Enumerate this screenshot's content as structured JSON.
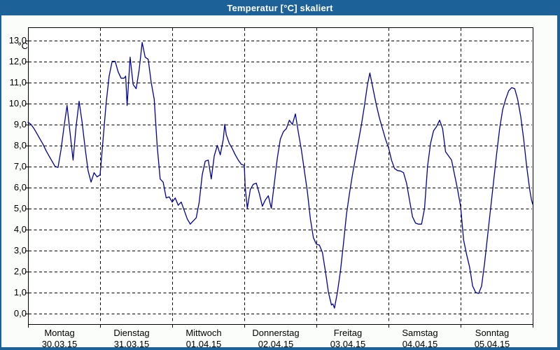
{
  "window": {
    "title": "Temperatur [°C] skaliert"
  },
  "colors": {
    "titlebar": "#1c6298",
    "frame": "#1c6298",
    "chart_background": "#fbfdfa",
    "plot_background": "#ffffff",
    "grid": "#000000",
    "text": "#000000",
    "line": "#0000a0"
  },
  "chart_data": {
    "type": "line",
    "title": "Temperatur [°C] skaliert",
    "ylabel": "°C",
    "xlabel": "",
    "ylim": [
      0,
      13
    ],
    "grid": "dashed",
    "legend_position": "none",
    "y_axis": {
      "unit_label": "°C",
      "min": 0,
      "max": 13,
      "tick_step": 1,
      "tick_labels": [
        "13,0",
        "12,0",
        "11,0",
        "10,0",
        "9,0",
        "8,0",
        "7,0",
        "6,0",
        "5,0",
        "4,0",
        "3,0",
        "2,0",
        "1,0",
        "0,0"
      ]
    },
    "x_axis": {
      "hours_per_day": 24,
      "days": [
        {
          "name": "Montag",
          "date": "30.03.15"
        },
        {
          "name": "Dienstag",
          "date": "31.03.15"
        },
        {
          "name": "Mittwoch",
          "date": "01.04.15"
        },
        {
          "name": "Donnerstag",
          "date": "02.04.15"
        },
        {
          "name": "Freitag",
          "date": "03.04.15"
        },
        {
          "name": "Samstag",
          "date": "04.04.15"
        },
        {
          "name": "Sonntag",
          "date": "05.04.15"
        }
      ]
    },
    "series": [
      {
        "name": "Temperatur",
        "color": "#0000a0",
        "points": [
          [
            0,
            9.1
          ],
          [
            1,
            9.0
          ],
          [
            2,
            8.8
          ],
          [
            3,
            8.55
          ],
          [
            4,
            8.3
          ],
          [
            5,
            8.05
          ],
          [
            6,
            7.75
          ],
          [
            7,
            7.5
          ],
          [
            8,
            7.25
          ],
          [
            9,
            7.0
          ],
          [
            10,
            6.95
          ],
          [
            11,
            7.8
          ],
          [
            12,
            8.9
          ],
          [
            13,
            9.9
          ],
          [
            14,
            8.6
          ],
          [
            15,
            7.3
          ],
          [
            16,
            8.9
          ],
          [
            17,
            10.1
          ],
          [
            18,
            9.1
          ],
          [
            19,
            7.9
          ],
          [
            20,
            6.8
          ],
          [
            21,
            6.25
          ],
          [
            22,
            6.7
          ],
          [
            23,
            6.5
          ],
          [
            24,
            6.6
          ],
          [
            25,
            8.3
          ],
          [
            26,
            10.0
          ],
          [
            27,
            11.3
          ],
          [
            28,
            12.0
          ],
          [
            29,
            12.0
          ],
          [
            30,
            11.5
          ],
          [
            31,
            11.2
          ],
          [
            32,
            11.2
          ],
          [
            32.5,
            11.3
          ],
          [
            33,
            9.9
          ],
          [
            34,
            12.2
          ],
          [
            35,
            10.9
          ],
          [
            36,
            10.7
          ],
          [
            37,
            11.6
          ],
          [
            38,
            12.9
          ],
          [
            39,
            12.2
          ],
          [
            40,
            12.1
          ],
          [
            41,
            11.0
          ],
          [
            42,
            10.2
          ],
          [
            43,
            8.0
          ],
          [
            44,
            6.4
          ],
          [
            45,
            6.25
          ],
          [
            46,
            5.5
          ],
          [
            47,
            5.55
          ],
          [
            48,
            5.3
          ],
          [
            49,
            5.5
          ],
          [
            50,
            5.15
          ],
          [
            51,
            5.3
          ],
          [
            52,
            4.9
          ],
          [
            53,
            4.5
          ],
          [
            54,
            4.25
          ],
          [
            55,
            4.4
          ],
          [
            56,
            4.55
          ],
          [
            57,
            5.3
          ],
          [
            58,
            6.6
          ],
          [
            59,
            7.25
          ],
          [
            60,
            7.3
          ],
          [
            61,
            6.4
          ],
          [
            62,
            7.5
          ],
          [
            63,
            8.0
          ],
          [
            64,
            7.55
          ],
          [
            65,
            8.3
          ],
          [
            65.5,
            9.0
          ],
          [
            66,
            8.5
          ],
          [
            67,
            8.1
          ],
          [
            68,
            7.85
          ],
          [
            69,
            7.55
          ],
          [
            70,
            7.3
          ],
          [
            71,
            7.1
          ],
          [
            72,
            7.05
          ],
          [
            72.3,
            6.0
          ],
          [
            73,
            5.0
          ],
          [
            74,
            5.9
          ],
          [
            75,
            6.15
          ],
          [
            76,
            6.2
          ],
          [
            77,
            5.7
          ],
          [
            78,
            5.1
          ],
          [
            79,
            5.4
          ],
          [
            80,
            5.6
          ],
          [
            81,
            5.0
          ],
          [
            82,
            6.2
          ],
          [
            83,
            7.4
          ],
          [
            84,
            8.3
          ],
          [
            85,
            8.65
          ],
          [
            86,
            8.8
          ],
          [
            87,
            9.2
          ],
          [
            88,
            9.0
          ],
          [
            89,
            9.5
          ],
          [
            90,
            8.6
          ],
          [
            91,
            7.8
          ],
          [
            92,
            6.8
          ],
          [
            93,
            5.8
          ],
          [
            94,
            4.5
          ],
          [
            95,
            3.6
          ],
          [
            96,
            3.3
          ],
          [
            97,
            3.25
          ],
          [
            98,
            2.9
          ],
          [
            99,
            2.0
          ],
          [
            100,
            1.0
          ],
          [
            101,
            0.4
          ],
          [
            101.5,
            0.45
          ],
          [
            102,
            0.25
          ],
          [
            103,
            1.0
          ],
          [
            104,
            2.0
          ],
          [
            105,
            3.3
          ],
          [
            106,
            4.7
          ],
          [
            107,
            5.7
          ],
          [
            108,
            6.6
          ],
          [
            109,
            7.4
          ],
          [
            110,
            8.2
          ],
          [
            111,
            9.0
          ],
          [
            112,
            9.9
          ],
          [
            113,
            10.9
          ],
          [
            113.8,
            11.45
          ],
          [
            115,
            10.6
          ],
          [
            116,
            9.9
          ],
          [
            117,
            9.3
          ],
          [
            118,
            8.8
          ],
          [
            119,
            8.3
          ],
          [
            120,
            7.9
          ],
          [
            121,
            7.3
          ],
          [
            122,
            6.9
          ],
          [
            123,
            6.8
          ],
          [
            124,
            6.78
          ],
          [
            125,
            6.7
          ],
          [
            126,
            6.2
          ],
          [
            127,
            5.4
          ],
          [
            128,
            4.6
          ],
          [
            129,
            4.3
          ],
          [
            130,
            4.25
          ],
          [
            131,
            4.25
          ],
          [
            132,
            5.0
          ],
          [
            133,
            7.0
          ],
          [
            134,
            8.1
          ],
          [
            135,
            8.7
          ],
          [
            136,
            8.9
          ],
          [
            137,
            9.2
          ],
          [
            138,
            8.8
          ],
          [
            139,
            7.7
          ],
          [
            140,
            7.5
          ],
          [
            141,
            7.3
          ],
          [
            142,
            6.6
          ],
          [
            143,
            5.9
          ],
          [
            144,
            5.1
          ],
          [
            145,
            3.5
          ],
          [
            146,
            2.8
          ],
          [
            147,
            2.2
          ],
          [
            148,
            1.3
          ],
          [
            149,
            1.0
          ],
          [
            150,
            0.95
          ],
          [
            151,
            1.3
          ],
          [
            152,
            2.4
          ],
          [
            153,
            3.7
          ],
          [
            154,
            5.0
          ],
          [
            155,
            6.3
          ],
          [
            156,
            7.6
          ],
          [
            157,
            8.8
          ],
          [
            158,
            9.7
          ],
          [
            159,
            10.2
          ],
          [
            160,
            10.6
          ],
          [
            161,
            10.75
          ],
          [
            162,
            10.7
          ],
          [
            163,
            10.2
          ],
          [
            164,
            9.4
          ],
          [
            165,
            8.3
          ],
          [
            166,
            7.0
          ],
          [
            167,
            5.9
          ],
          [
            167.6,
            5.4
          ],
          [
            168,
            5.2
          ]
        ]
      }
    ]
  }
}
